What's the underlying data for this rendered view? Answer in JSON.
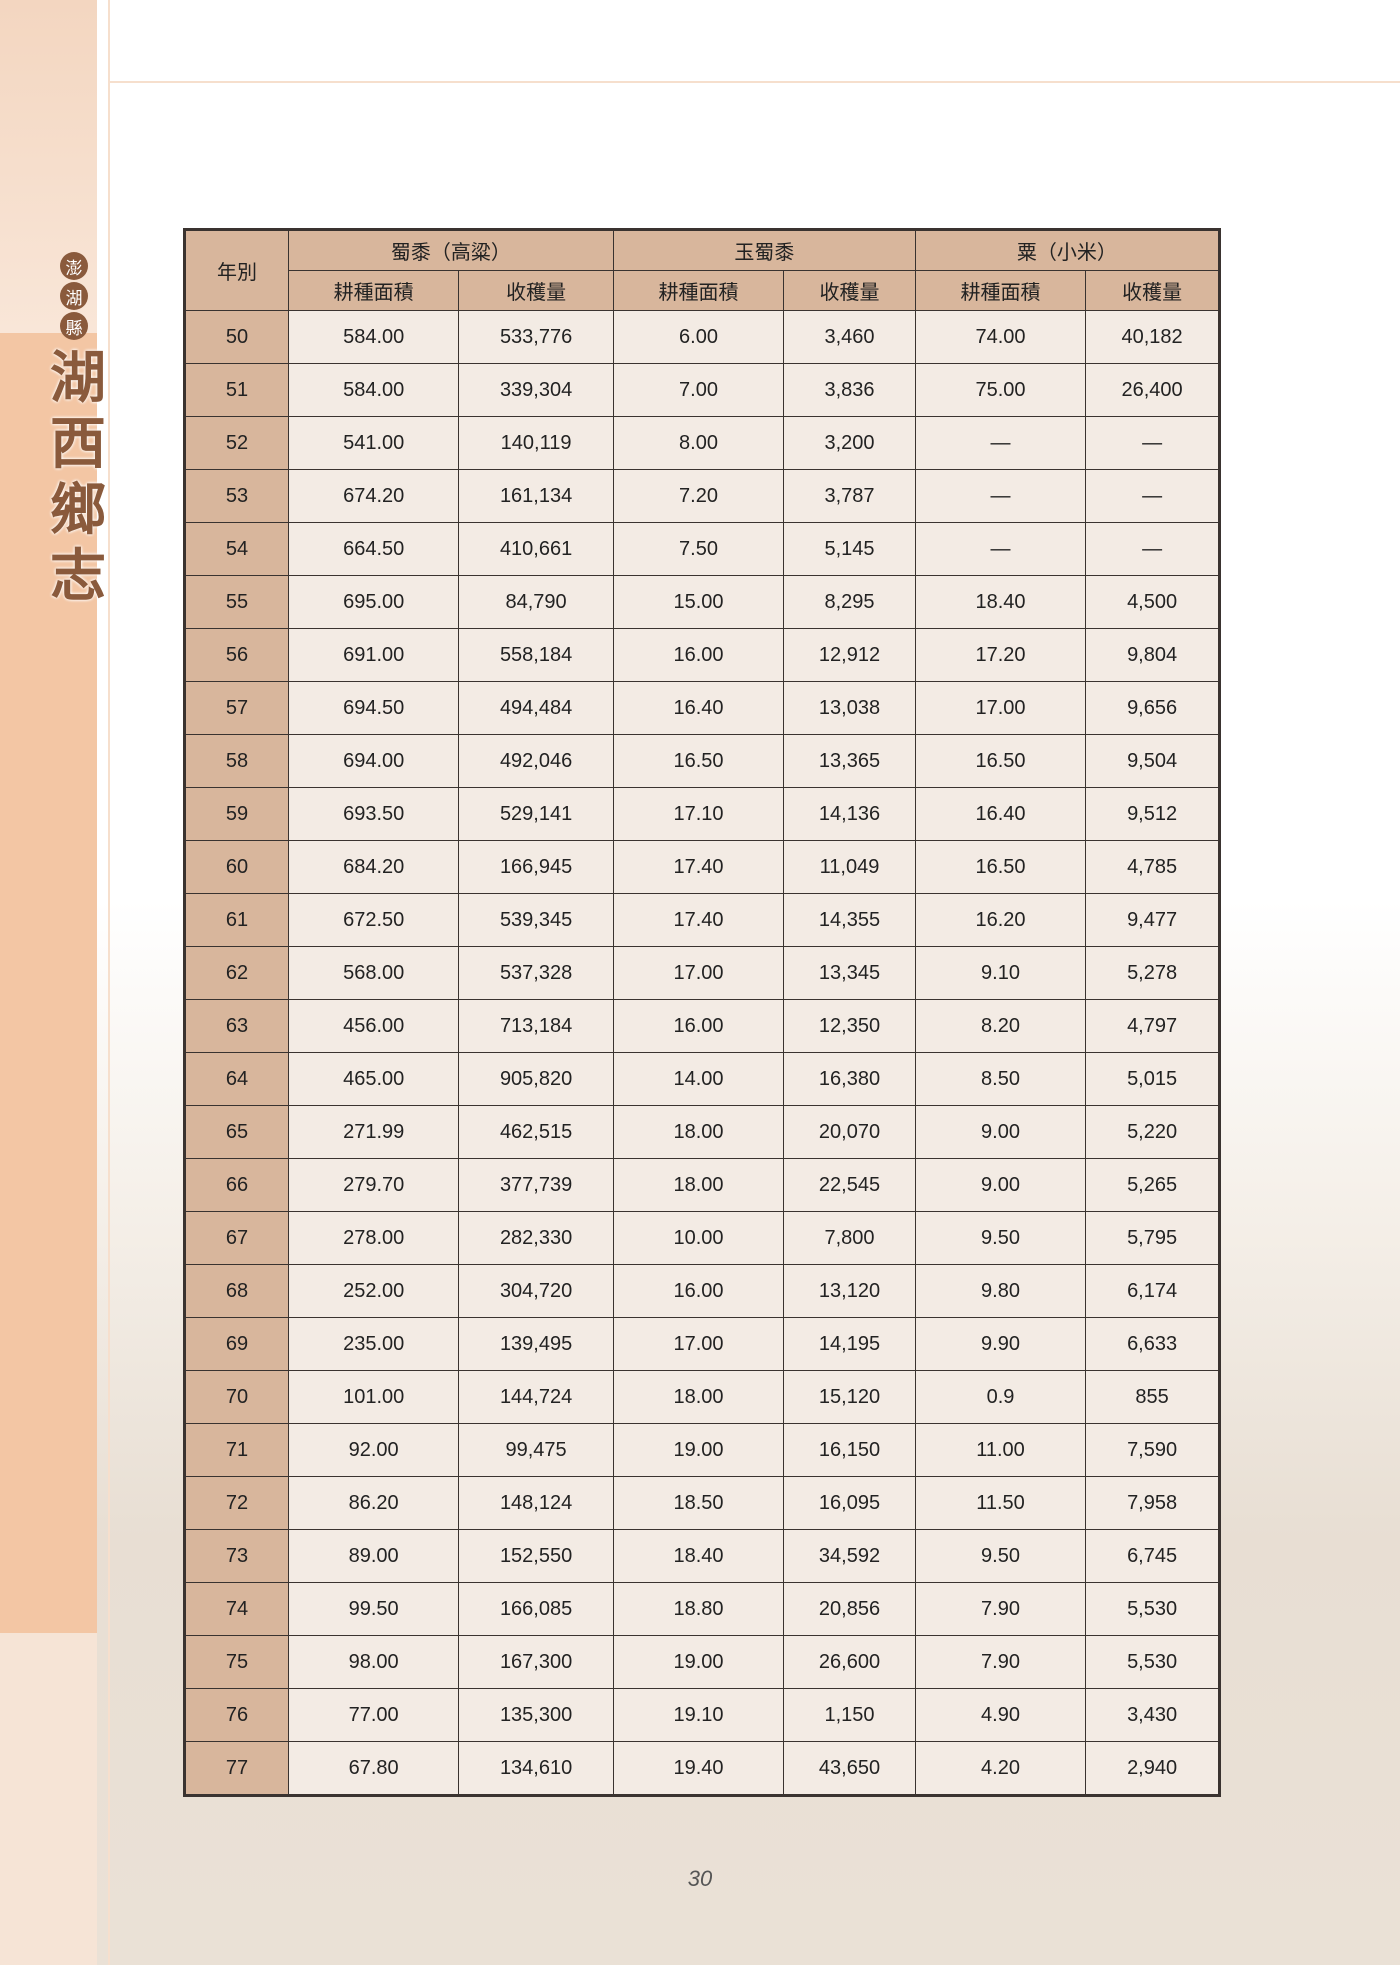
{
  "sidebar": {
    "county": [
      "澎",
      "湖",
      "縣"
    ],
    "township": [
      "湖",
      "西",
      "鄉",
      "志"
    ]
  },
  "table": {
    "year_header": "年別",
    "groups": [
      "蜀黍（高粱）",
      "玉蜀黍",
      "粟（小米）"
    ],
    "subheaders": [
      "耕種面積",
      "收穫量",
      "耕種面積",
      "收穫量",
      "耕種面積",
      "收穫量"
    ],
    "rows": [
      [
        "50",
        "584.00",
        "533,776",
        "6.00",
        "3,460",
        "74.00",
        "40,182"
      ],
      [
        "51",
        "584.00",
        "339,304",
        "7.00",
        "3,836",
        "75.00",
        "26,400"
      ],
      [
        "52",
        "541.00",
        "140,119",
        "8.00",
        "3,200",
        "—",
        "—"
      ],
      [
        "53",
        "674.20",
        "161,134",
        "7.20",
        "3,787",
        "—",
        "—"
      ],
      [
        "54",
        "664.50",
        "410,661",
        "7.50",
        "5,145",
        "—",
        "—"
      ],
      [
        "55",
        "695.00",
        "84,790",
        "15.00",
        "8,295",
        "18.40",
        "4,500"
      ],
      [
        "56",
        "691.00",
        "558,184",
        "16.00",
        "12,912",
        "17.20",
        "9,804"
      ],
      [
        "57",
        "694.50",
        "494,484",
        "16.40",
        "13,038",
        "17.00",
        "9,656"
      ],
      [
        "58",
        "694.00",
        "492,046",
        "16.50",
        "13,365",
        "16.50",
        "9,504"
      ],
      [
        "59",
        "693.50",
        "529,141",
        "17.10",
        "14,136",
        "16.40",
        "9,512"
      ],
      [
        "60",
        "684.20",
        "166,945",
        "17.40",
        "11,049",
        "16.50",
        "4,785"
      ],
      [
        "61",
        "672.50",
        "539,345",
        "17.40",
        "14,355",
        "16.20",
        "9,477"
      ],
      [
        "62",
        "568.00",
        "537,328",
        "17.00",
        "13,345",
        "9.10",
        "5,278"
      ],
      [
        "63",
        "456.00",
        "713,184",
        "16.00",
        "12,350",
        "8.20",
        "4,797"
      ],
      [
        "64",
        "465.00",
        "905,820",
        "14.00",
        "16,380",
        "8.50",
        "5,015"
      ],
      [
        "65",
        "271.99",
        "462,515",
        "18.00",
        "20,070",
        "9.00",
        "5,220"
      ],
      [
        "66",
        "279.70",
        "377,739",
        "18.00",
        "22,545",
        "9.00",
        "5,265"
      ],
      [
        "67",
        "278.00",
        "282,330",
        "10.00",
        "7,800",
        "9.50",
        "5,795"
      ],
      [
        "68",
        "252.00",
        "304,720",
        "16.00",
        "13,120",
        "9.80",
        "6,174"
      ],
      [
        "69",
        "235.00",
        "139,495",
        "17.00",
        "14,195",
        "9.90",
        "6,633"
      ],
      [
        "70",
        "101.00",
        "144,724",
        "18.00",
        "15,120",
        "0.9",
        "855"
      ],
      [
        "71",
        "92.00",
        "99,475",
        "19.00",
        "16,150",
        "11.00",
        "7,590"
      ],
      [
        "72",
        "86.20",
        "148,124",
        "18.50",
        "16,095",
        "11.50",
        "7,958"
      ],
      [
        "73",
        "89.00",
        "152,550",
        "18.40",
        "34,592",
        "9.50",
        "6,745"
      ],
      [
        "74",
        "99.50",
        "166,085",
        "18.80",
        "20,856",
        "7.90",
        "5,530"
      ],
      [
        "75",
        "98.00",
        "167,300",
        "19.00",
        "26,600",
        "7.90",
        "5,530"
      ],
      [
        "76",
        "77.00",
        "135,300",
        "19.10",
        "1,150",
        "4.90",
        "3,430"
      ],
      [
        "77",
        "67.80",
        "134,610",
        "19.40",
        "43,650",
        "4.20",
        "2,940"
      ]
    ]
  },
  "page_number": "30"
}
